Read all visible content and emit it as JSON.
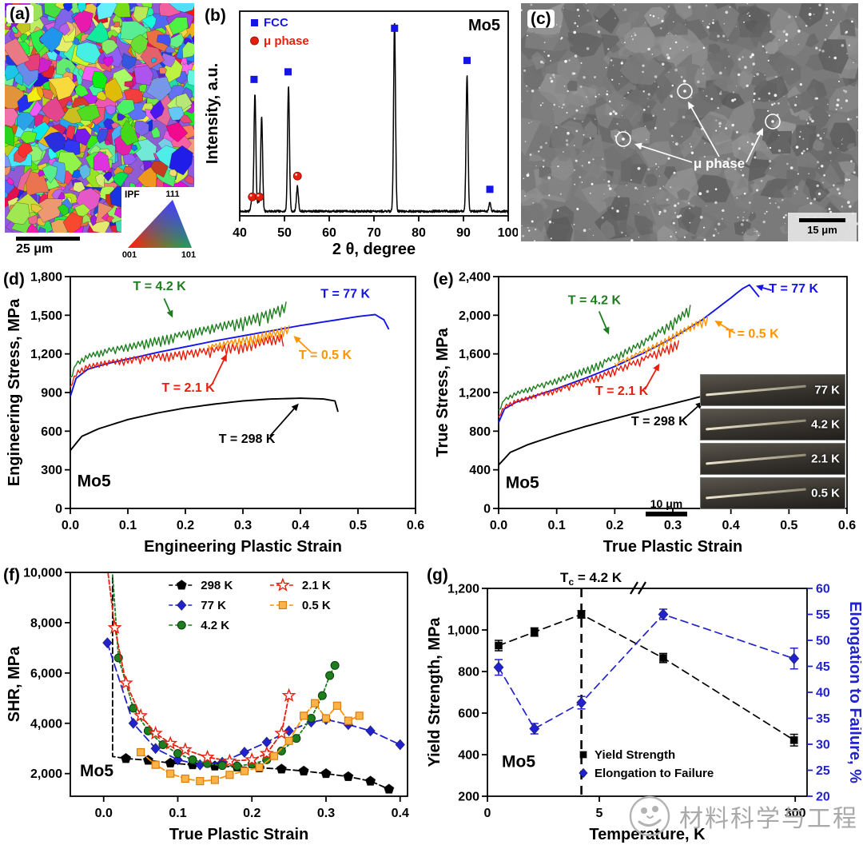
{
  "figure": {
    "watermark": {
      "text": "材料科学与工程",
      "color": "#a9a9a9"
    }
  },
  "panels": {
    "a": {
      "tag": "(a)",
      "scalebar": "25 μm",
      "inset": {
        "title": "IPF",
        "corners": [
          "111",
          "001",
          "101"
        ]
      }
    },
    "b": {
      "tag": "(b)"
    },
    "c": {
      "tag": "(c)",
      "annotation": "μ phase",
      "scalebar": "15 μm"
    },
    "d": {
      "tag": "(d)"
    },
    "e": {
      "tag": "(e)",
      "inset_labels": [
        "77 K",
        "4.2 K",
        "2.1 K",
        "0.5 K"
      ],
      "inset_scalebar": "10 μm"
    },
    "f": {
      "tag": "(f)"
    },
    "g": {
      "tag": "(g)"
    }
  },
  "chart_data": [
    {
      "panel": "b",
      "type": "line",
      "corner_label": "Mo5",
      "xlabel": "2 θ, degree",
      "ylabel": "Intensity, a.u.",
      "xlim": [
        40,
        100
      ],
      "xticks": [
        40,
        50,
        60,
        70,
        80,
        90,
        100
      ],
      "legend": [
        {
          "label": "FCC",
          "marker": "square",
          "color": "#1414e6"
        },
        {
          "label": "μ phase",
          "marker": "circle",
          "color": "#e81e0c"
        }
      ],
      "peaks": [
        [
          43.4,
          0.62
        ],
        [
          44.9,
          0.5
        ],
        [
          50.9,
          0.66
        ],
        [
          52.9,
          0.13
        ],
        [
          74.6,
          1.0
        ],
        [
          90.8,
          0.72
        ],
        [
          95.9,
          0.045
        ],
        [
          42.7,
          0.06
        ],
        [
          44.2,
          0.05
        ]
      ],
      "markers": [
        {
          "x": 43.2,
          "y": 0.72,
          "phase": "FCC"
        },
        {
          "x": 50.8,
          "y": 0.76,
          "phase": "FCC"
        },
        {
          "x": 74.6,
          "y": 0.99,
          "phase": "FCC"
        },
        {
          "x": 90.8,
          "y": 0.82,
          "phase": "FCC"
        },
        {
          "x": 95.9,
          "y": 0.14,
          "phase": "FCC"
        },
        {
          "x": 42.8,
          "y": 0.1,
          "phase": "mu"
        },
        {
          "x": 44.4,
          "y": 0.1,
          "phase": "mu"
        },
        {
          "x": 52.9,
          "y": 0.21,
          "phase": "mu"
        }
      ]
    },
    {
      "panel": "d",
      "type": "line",
      "corner_label": "Mo5",
      "xlabel": "Engineering Plastic Strain",
      "ylabel": "Engineering Stress, MPa",
      "xlim": [
        0,
        0.6
      ],
      "ylim": [
        0,
        1800
      ],
      "xticks": [
        0,
        0.1,
        0.2,
        0.3,
        0.4,
        0.5,
        0.6
      ],
      "yticks": [
        0,
        300,
        600,
        900,
        1200,
        1500,
        1800
      ],
      "series": [
        {
          "name": "T = 298 K",
          "color": "#000000",
          "serration": 0,
          "x": [
            0,
            0.02,
            0.05,
            0.1,
            0.15,
            0.2,
            0.25,
            0.3,
            0.35,
            0.4,
            0.44,
            0.46,
            0.465
          ],
          "y": [
            450,
            560,
            620,
            690,
            740,
            780,
            810,
            835,
            850,
            856,
            850,
            835,
            755
          ]
        },
        {
          "name": "T = 77 K",
          "color": "#1414e6",
          "serration": 0,
          "x": [
            0,
            0.01,
            0.03,
            0.06,
            0.1,
            0.15,
            0.2,
            0.25,
            0.3,
            0.35,
            0.4,
            0.45,
            0.5,
            0.53,
            0.545,
            0.553
          ],
          "y": [
            870,
            1010,
            1080,
            1120,
            1160,
            1210,
            1255,
            1300,
            1340,
            1380,
            1420,
            1455,
            1490,
            1505,
            1465,
            1395
          ]
        },
        {
          "name": "T = 2.1 K",
          "color": "#e81e0c",
          "serration": 95,
          "x": [
            0,
            0.01,
            0.03,
            0.06,
            0.1,
            0.15,
            0.2,
            0.25,
            0.3,
            0.34,
            0.37
          ],
          "y": [
            945,
            1065,
            1115,
            1145,
            1170,
            1195,
            1220,
            1250,
            1290,
            1325,
            1350
          ]
        },
        {
          "name": "T = 4.2 K",
          "color": "#1e7d1e",
          "serration": 110,
          "x": [
            0,
            0.01,
            0.03,
            0.06,
            0.1,
            0.15,
            0.2,
            0.25,
            0.3,
            0.34,
            0.375
          ],
          "y": [
            1015,
            1135,
            1195,
            1235,
            1275,
            1325,
            1375,
            1425,
            1475,
            1525,
            1595
          ]
        },
        {
          "name": "T = 0.5 K",
          "color": "#ff9300",
          "serration": 100,
          "x": [
            0.24,
            0.27,
            0.3,
            0.33,
            0.36,
            0.38
          ],
          "y": [
            1265,
            1295,
            1325,
            1355,
            1390,
            1415
          ]
        }
      ],
      "annotations": [
        {
          "text": "T = 4.2 K",
          "color": "#1e7d1e",
          "tx": 0.155,
          "ty": 1695,
          "arrow": [
            0.163,
            1630,
            0.178,
            1480
          ]
        },
        {
          "text": "T = 77 K",
          "color": "#1414e6",
          "tx": 0.478,
          "ty": 1635,
          "arrow": null
        },
        {
          "text": "T = 0.5 K",
          "color": "#ff9300",
          "tx": 0.443,
          "ty": 1160,
          "arrow": [
            0.418,
            1215,
            0.388,
            1340
          ]
        },
        {
          "text": "T = 2.1 K",
          "color": "#e81e0c",
          "tx": 0.205,
          "ty": 905,
          "arrow": [
            0.246,
            960,
            0.272,
            1200
          ]
        },
        {
          "text": "T = 298 K",
          "color": "#000000",
          "tx": 0.307,
          "ty": 510,
          "arrow": [
            0.347,
            562,
            0.397,
            815
          ]
        }
      ]
    },
    {
      "panel": "e",
      "type": "line",
      "corner_label": "Mo5",
      "xlabel": "True Plastic Strain",
      "ylabel": "True Stress, MPa",
      "xlim": [
        0,
        0.6
      ],
      "ylim": [
        0,
        2400
      ],
      "xticks": [
        0,
        0.1,
        0.2,
        0.3,
        0.4,
        0.5,
        0.6
      ],
      "yticks": [
        0,
        400,
        800,
        1200,
        1600,
        2000,
        2400
      ],
      "series": [
        {
          "name": "T = 298 K",
          "color": "#000000",
          "serration": 0,
          "x": [
            0,
            0.02,
            0.05,
            0.1,
            0.15,
            0.2,
            0.25,
            0.3,
            0.35,
            0.375,
            0.385
          ],
          "y": [
            450,
            580,
            660,
            760,
            850,
            930,
            1010,
            1085,
            1160,
            1195,
            1145
          ]
        },
        {
          "name": "T = 77 K",
          "color": "#1414e6",
          "serration": 0,
          "x": [
            0,
            0.01,
            0.03,
            0.06,
            0.1,
            0.15,
            0.2,
            0.25,
            0.3,
            0.35,
            0.4,
            0.42,
            0.432,
            0.448
          ],
          "y": [
            890,
            1030,
            1100,
            1160,
            1240,
            1350,
            1470,
            1610,
            1765,
            1950,
            2180,
            2275,
            2315,
            2195
          ]
        },
        {
          "name": "T = 2.1 K",
          "color": "#e81e0c",
          "serration": 95,
          "x": [
            0,
            0.01,
            0.03,
            0.06,
            0.1,
            0.15,
            0.2,
            0.25,
            0.29,
            0.31
          ],
          "y": [
            950,
            1070,
            1125,
            1175,
            1245,
            1335,
            1445,
            1570,
            1680,
            1735
          ]
        },
        {
          "name": "T = 4.2 K",
          "color": "#1e7d1e",
          "serration": 110,
          "x": [
            0,
            0.01,
            0.03,
            0.06,
            0.1,
            0.15,
            0.2,
            0.25,
            0.3,
            0.33
          ],
          "y": [
            1020,
            1140,
            1205,
            1265,
            1345,
            1455,
            1585,
            1745,
            1950,
            2095
          ]
        },
        {
          "name": "T = 0.5 K",
          "color": "#ff9300",
          "serration": 100,
          "x": [
            0.2,
            0.24,
            0.28,
            0.31,
            0.34,
            0.36
          ],
          "y": [
            1500,
            1615,
            1735,
            1835,
            1930,
            1990
          ]
        }
      ],
      "annotations": [
        {
          "text": "T = 4.2 K",
          "color": "#1e7d1e",
          "tx": 0.165,
          "ty": 2115,
          "arrow": [
            0.173,
            2040,
            0.19,
            1800
          ]
        },
        {
          "text": "T = 77 K",
          "color": "#1414e6",
          "tx": 0.508,
          "ty": 2235,
          "arrow": [
            0.47,
            2258,
            0.443,
            2305
          ]
        },
        {
          "text": "T = 0.5 K",
          "color": "#ff9300",
          "tx": 0.437,
          "ty": 1765,
          "arrow": [
            0.407,
            1815,
            0.372,
            1945
          ]
        },
        {
          "text": "T = 2.1 K",
          "color": "#e81e0c",
          "tx": 0.212,
          "ty": 1175,
          "arrow": [
            0.252,
            1232,
            0.277,
            1500
          ]
        },
        {
          "text": "T = 298 K",
          "color": "#000000",
          "tx": 0.277,
          "ty": 862,
          "arrow": [
            0.317,
            915,
            0.352,
            1105
          ]
        }
      ]
    },
    {
      "panel": "f",
      "type": "line+scatter",
      "corner_label": "Mo5",
      "xlabel": "True Plastic Strain",
      "ylabel": "SHR, MPa",
      "xlim": [
        -0.045,
        0.41
      ],
      "ylim": [
        1100,
        10000
      ],
      "xticks": [
        0,
        0.1,
        0.2,
        0.3,
        0.4
      ],
      "yticks": [
        2000,
        4000,
        6000,
        8000,
        10000
      ],
      "legend": [
        {
          "label": "298 K",
          "color": "#000000",
          "marker": "pentagon"
        },
        {
          "label": "77 K",
          "color": "#2222cc",
          "marker": "diamond"
        },
        {
          "label": "4.2 K",
          "color": "#1e7d1e",
          "marker": "circle"
        },
        {
          "label": "2.1 K",
          "color": "#e81e0c",
          "marker": "star"
        },
        {
          "label": "0.5 K",
          "color": "#ff9300",
          "marker": "square"
        }
      ],
      "series": [
        {
          "name": "298 K",
          "color": "#000000",
          "marker": "pentagon",
          "dash": "7 4",
          "markers_from": 2,
          "x": [
            0.012,
            0.012,
            0.03,
            0.06,
            0.09,
            0.12,
            0.15,
            0.18,
            0.21,
            0.24,
            0.27,
            0.3,
            0.33,
            0.36,
            0.385
          ],
          "y": [
            9800,
            2680,
            2600,
            2530,
            2420,
            2350,
            2300,
            2265,
            2230,
            2180,
            2100,
            2000,
            1880,
            1700,
            1380
          ]
        },
        {
          "name": "77 K",
          "color": "#2222cc",
          "marker": "diamond",
          "dash": "9 5",
          "markers_from": 0,
          "x": [
            0.005,
            0.04,
            0.07,
            0.1,
            0.13,
            0.16,
            0.19,
            0.22,
            0.25,
            0.28,
            0.3,
            0.33,
            0.36,
            0.4
          ],
          "y": [
            7200,
            4000,
            3000,
            2550,
            2350,
            2450,
            2850,
            3250,
            3700,
            4050,
            4150,
            3950,
            3700,
            3150
          ]
        },
        {
          "name": "4.2 K",
          "color": "#1e7d1e",
          "marker": "circle",
          "dash": "3 3",
          "markers_from": 1,
          "x": [
            0.012,
            0.02,
            0.04,
            0.06,
            0.08,
            0.1,
            0.12,
            0.14,
            0.16,
            0.18,
            0.2,
            0.22,
            0.24,
            0.26,
            0.28,
            0.295,
            0.305,
            0.312
          ],
          "y": [
            9900,
            6600,
            4600,
            3700,
            3150,
            2800,
            2550,
            2400,
            2320,
            2300,
            2380,
            2550,
            2900,
            3400,
            4200,
            5100,
            5900,
            6300
          ]
        },
        {
          "name": "2.1 K",
          "color": "#e81e0c",
          "marker": "star",
          "dash": "5 3",
          "markers_from": 1,
          "x": [
            0.006,
            0.015,
            0.03,
            0.05,
            0.07,
            0.09,
            0.11,
            0.14,
            0.17,
            0.2,
            0.22,
            0.24,
            0.25
          ],
          "y": [
            9950,
            7800,
            5600,
            4300,
            3600,
            3200,
            2950,
            2650,
            2500,
            2550,
            2800,
            3600,
            5100
          ]
        },
        {
          "name": "0.5 K",
          "color": "#ff9300",
          "marker": "square",
          "dash": "7 3",
          "markers_from": 0,
          "x": [
            0.05,
            0.07,
            0.09,
            0.11,
            0.13,
            0.15,
            0.17,
            0.19,
            0.21,
            0.23,
            0.25,
            0.27,
            0.285,
            0.3,
            0.315,
            0.33,
            0.345
          ],
          "y": [
            2850,
            2350,
            2000,
            1800,
            1700,
            1750,
            1950,
            2100,
            2250,
            2700,
            3300,
            4300,
            4800,
            4200,
            4700,
            4100,
            4300
          ]
        }
      ]
    },
    {
      "panel": "g",
      "type": "scatter",
      "corner_label": "Mo5",
      "xlabel": "Temperature, K",
      "ylabel_left": "Yield Strength, MPa",
      "ylabel_right": "Elongation to Failure, %",
      "ylim_left": [
        200,
        1200
      ],
      "yticks_left": [
        200,
        400,
        600,
        800,
        1000,
        1200
      ],
      "ylim_right": [
        20,
        60
      ],
      "yticks_right": [
        20,
        25,
        30,
        35,
        40,
        45,
        50,
        55,
        60
      ],
      "xticks_left": [
        0,
        5
      ],
      "xticks_right": [
        300
      ],
      "tc_label": {
        "main": "T",
        "sub": "c",
        "rest": " = 4.2 K"
      },
      "tc_x": 4.2,
      "series": [
        {
          "name": "Yield Strength",
          "axis": "left",
          "color": "#000000",
          "marker": "square",
          "x": [
            0.5,
            2.1,
            4.2,
            77,
            298
          ],
          "y": [
            925,
            990,
            1075,
            865,
            470
          ],
          "err": [
            25,
            20,
            18,
            22,
            28
          ]
        },
        {
          "name": "Elongation to Failure",
          "axis": "right",
          "color": "#2222cc",
          "marker": "diamond",
          "x": [
            0.5,
            2.1,
            4.2,
            77,
            298
          ],
          "y": [
            44.8,
            33,
            38,
            55,
            46.5
          ],
          "err": [
            1.5,
            1,
            1.2,
            1,
            2
          ]
        }
      ]
    }
  ]
}
